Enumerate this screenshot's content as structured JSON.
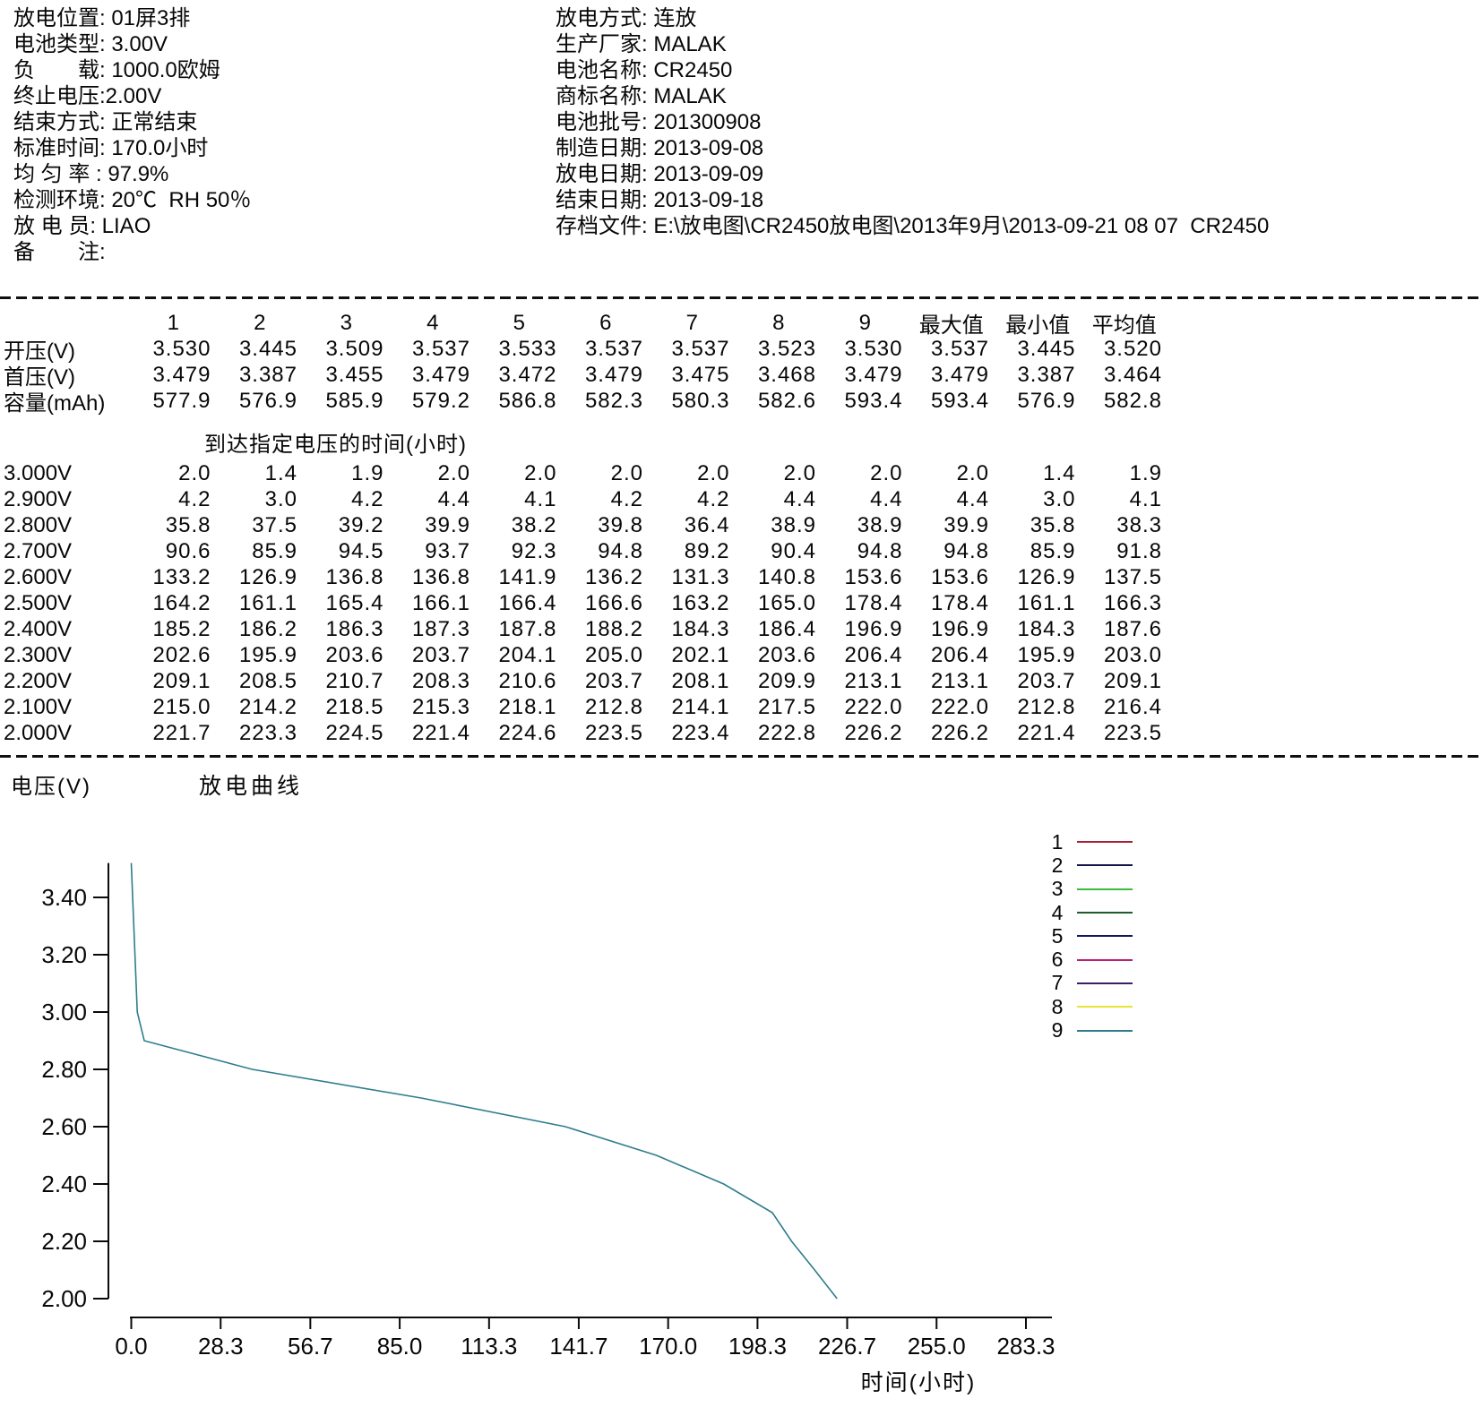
{
  "info_left": [
    "放电位置: 01屏3排",
    "电池类型: 3.00V",
    "负　　载: 1000.0欧姆",
    "终止电压:2.00V",
    "结束方式: 正常结束",
    "标准时间: 170.0小时",
    "均 匀 率 : 97.9%",
    "检测环境: 20℃  RH 50％",
    "放 电 员: LIAO",
    "备　　注:"
  ],
  "info_right": [
    "放电方式: 连放",
    "生产厂家: MALAK",
    "电池名称: CR2450",
    "商标名称: MALAK",
    "电池批号: 201300908",
    "制造日期: 2013-09-08",
    "放电日期: 2013-09-09",
    "结束日期: 2013-09-18",
    "存档文件: E:\\放电图\\CR2450放电图\\2013年9月\\2013-09-21 08 07  CR2450"
  ],
  "tables": {
    "stats": {
      "headers": [
        "1",
        "2",
        "3",
        "4",
        "5",
        "6",
        "7",
        "8",
        "9",
        "最大值",
        "最小值",
        "平均值"
      ],
      "rows": [
        {
          "label": "开压(V)",
          "values": [
            "3.530",
            "3.445",
            "3.509",
            "3.537",
            "3.533",
            "3.537",
            "3.537",
            "3.523",
            "3.530",
            "3.537",
            "3.445",
            "3.520"
          ]
        },
        {
          "label": "首压(V)",
          "values": [
            "3.479",
            "3.387",
            "3.455",
            "3.479",
            "3.472",
            "3.479",
            "3.475",
            "3.468",
            "3.479",
            "3.479",
            "3.387",
            "3.464"
          ]
        },
        {
          "label": "容量(mAh)",
          "values": [
            "577.9",
            "576.9",
            "585.9",
            "579.2",
            "586.8",
            "582.3",
            "580.3",
            "582.6",
            "593.4",
            "593.4",
            "576.9",
            "582.8"
          ]
        }
      ]
    },
    "time_to_voltage": {
      "title": "到达指定电压的时间(小时)",
      "rows": [
        {
          "label": "3.000V",
          "values": [
            "2.0",
            "1.4",
            "1.9",
            "2.0",
            "2.0",
            "2.0",
            "2.0",
            "2.0",
            "2.0",
            "2.0",
            "1.4",
            "1.9"
          ]
        },
        {
          "label": "2.900V",
          "values": [
            "4.2",
            "3.0",
            "4.2",
            "4.4",
            "4.1",
            "4.2",
            "4.2",
            "4.4",
            "4.4",
            "4.4",
            "3.0",
            "4.1"
          ]
        },
        {
          "label": "2.800V",
          "values": [
            "35.8",
            "37.5",
            "39.2",
            "39.9",
            "38.2",
            "39.8",
            "36.4",
            "38.9",
            "38.9",
            "39.9",
            "35.8",
            "38.3"
          ]
        },
        {
          "label": "2.700V",
          "values": [
            "90.6",
            "85.9",
            "94.5",
            "93.7",
            "92.3",
            "94.8",
            "89.2",
            "90.4",
            "94.8",
            "94.8",
            "85.9",
            "91.8"
          ]
        },
        {
          "label": "2.600V",
          "values": [
            "133.2",
            "126.9",
            "136.8",
            "136.8",
            "141.9",
            "136.2",
            "131.3",
            "140.8",
            "153.6",
            "153.6",
            "126.9",
            "137.5"
          ]
        },
        {
          "label": "2.500V",
          "values": [
            "164.2",
            "161.1",
            "165.4",
            "166.1",
            "166.4",
            "166.6",
            "163.2",
            "165.0",
            "178.4",
            "178.4",
            "161.1",
            "166.3"
          ]
        },
        {
          "label": "2.400V",
          "values": [
            "185.2",
            "186.2",
            "186.3",
            "187.3",
            "187.8",
            "188.2",
            "184.3",
            "186.4",
            "196.9",
            "196.9",
            "184.3",
            "187.6"
          ]
        },
        {
          "label": "2.300V",
          "values": [
            "202.6",
            "195.9",
            "203.6",
            "203.7",
            "204.1",
            "205.0",
            "202.1",
            "203.6",
            "206.4",
            "206.4",
            "195.9",
            "203.0"
          ]
        },
        {
          "label": "2.200V",
          "values": [
            "209.1",
            "208.5",
            "210.7",
            "208.3",
            "210.6",
            "203.7",
            "208.1",
            "209.9",
            "213.1",
            "213.1",
            "203.7",
            "209.1"
          ]
        },
        {
          "label": "2.100V",
          "values": [
            "215.0",
            "214.2",
            "218.5",
            "215.3",
            "218.1",
            "212.8",
            "214.1",
            "217.5",
            "222.0",
            "222.0",
            "212.8",
            "216.4"
          ]
        },
        {
          "label": "2.000V",
          "values": [
            "221.7",
            "223.3",
            "224.5",
            "221.4",
            "224.6",
            "223.5",
            "223.4",
            "222.8",
            "226.2",
            "226.2",
            "221.4",
            "223.5"
          ]
        }
      ]
    }
  },
  "chart_data": {
    "type": "line",
    "title": "放电曲线",
    "xlabel": "时间(小时)",
    "ylabel": "电压(V)",
    "x_ticks": [
      "0.0",
      "28.3",
      "56.7",
      "85.0",
      "113.3",
      "141.7",
      "170.0",
      "198.3",
      "226.7",
      "255.0",
      "283.3"
    ],
    "y_ticks": [
      "3.40",
      "3.20",
      "3.00",
      "2.80",
      "2.60",
      "2.40",
      "2.20",
      "2.00"
    ],
    "xlim": [
      0,
      283.3
    ],
    "ylim": [
      2.0,
      3.52
    ],
    "grid": false,
    "legend_position": "top-right",
    "legend": [
      {
        "label": "1",
        "color": "#a82038"
      },
      {
        "label": "2",
        "color": "#14144d"
      },
      {
        "label": "3",
        "color": "#3cbc3c"
      },
      {
        "label": "4",
        "color": "#1e5c2e"
      },
      {
        "label": "5",
        "color": "#16165c"
      },
      {
        "label": "6",
        "color": "#b82277"
      },
      {
        "label": "7",
        "color": "#3d1d66"
      },
      {
        "label": "8",
        "color": "#e6e632"
      },
      {
        "label": "9",
        "color": "#2e7d8c"
      }
    ],
    "milestone_voltages": [
      3.0,
      2.9,
      2.8,
      2.7,
      2.6,
      2.5,
      2.4,
      2.3,
      2.2,
      2.1,
      2.0
    ],
    "series": [
      {
        "name": "1",
        "start_voltage": 3.479,
        "times": [
          2.0,
          4.2,
          35.8,
          90.6,
          133.2,
          164.2,
          185.2,
          202.6,
          209.1,
          215.0,
          221.7
        ]
      },
      {
        "name": "2",
        "start_voltage": 3.387,
        "times": [
          1.4,
          3.0,
          37.5,
          85.9,
          126.9,
          161.1,
          186.2,
          195.9,
          208.5,
          214.2,
          223.3
        ]
      },
      {
        "name": "3",
        "start_voltage": 3.455,
        "times": [
          1.9,
          4.2,
          39.2,
          94.5,
          136.8,
          165.4,
          186.3,
          203.6,
          210.7,
          218.5,
          224.5
        ]
      },
      {
        "name": "4",
        "start_voltage": 3.479,
        "times": [
          2.0,
          4.4,
          39.9,
          93.7,
          136.8,
          166.1,
          187.3,
          203.7,
          208.3,
          215.3,
          221.4
        ]
      },
      {
        "name": "5",
        "start_voltage": 3.472,
        "times": [
          2.0,
          4.1,
          38.2,
          92.3,
          141.9,
          166.4,
          187.8,
          204.1,
          210.6,
          218.1,
          224.6
        ]
      },
      {
        "name": "6",
        "start_voltage": 3.479,
        "times": [
          2.0,
          4.2,
          39.8,
          94.8,
          136.2,
          166.6,
          188.2,
          205.0,
          203.7,
          212.8,
          223.5
        ]
      },
      {
        "name": "7",
        "start_voltage": 3.475,
        "times": [
          2.0,
          4.2,
          36.4,
          89.2,
          131.3,
          163.2,
          184.3,
          202.1,
          208.1,
          214.1,
          223.4
        ]
      },
      {
        "name": "8",
        "start_voltage": 3.468,
        "times": [
          2.0,
          4.4,
          38.9,
          90.4,
          140.8,
          165.0,
          186.4,
          203.6,
          209.9,
          217.5,
          222.8
        ]
      },
      {
        "name": "9",
        "start_voltage": 3.479,
        "times": [
          2.0,
          4.4,
          38.9,
          94.8,
          153.6,
          178.4,
          196.9,
          206.4,
          213.1,
          222.0,
          226.2
        ]
      }
    ],
    "plotted_curve": {
      "name": "平均值",
      "color": "#2e7d8c",
      "points": [
        [
          0,
          3.52
        ],
        [
          1.9,
          3.0
        ],
        [
          4.1,
          2.9
        ],
        [
          38.3,
          2.8
        ],
        [
          91.8,
          2.7
        ],
        [
          137.5,
          2.6
        ],
        [
          166.3,
          2.5
        ],
        [
          187.6,
          2.4
        ],
        [
          203.0,
          2.3
        ],
        [
          209.1,
          2.2
        ],
        [
          216.4,
          2.1
        ],
        [
          223.5,
          2.0
        ]
      ]
    }
  }
}
